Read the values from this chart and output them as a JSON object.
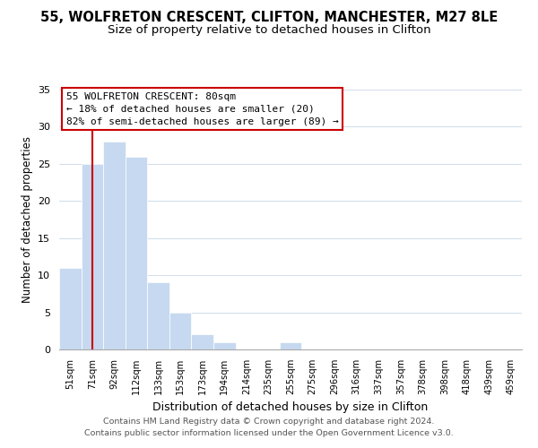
{
  "title_line1": "55, WOLFRETON CRESCENT, CLIFTON, MANCHESTER, M27 8LE",
  "title_line2": "Size of property relative to detached houses in Clifton",
  "xlabel": "Distribution of detached houses by size in Clifton",
  "ylabel": "Number of detached properties",
  "bar_labels": [
    "51sqm",
    "71sqm",
    "92sqm",
    "112sqm",
    "133sqm",
    "153sqm",
    "173sqm",
    "194sqm",
    "214sqm",
    "235sqm",
    "255sqm",
    "275sqm",
    "296sqm",
    "316sqm",
    "337sqm",
    "357sqm",
    "378sqm",
    "398sqm",
    "418sqm",
    "439sqm",
    "459sqm"
  ],
  "bar_values": [
    11,
    25,
    28,
    26,
    9,
    5,
    2,
    1,
    0,
    0,
    1,
    0,
    0,
    0,
    0,
    0,
    0,
    0,
    0,
    0,
    0
  ],
  "bar_color": "#c6d9f0",
  "bar_edge_color": "#ffffff",
  "ylim": [
    0,
    35
  ],
  "yticks": [
    0,
    5,
    10,
    15,
    20,
    25,
    30,
    35
  ],
  "annotation_line1": "55 WOLFRETON CRESCENT: 80sqm",
  "annotation_line2": "← 18% of detached houses are smaller (20)",
  "annotation_line3": "82% of semi-detached houses are larger (89) →",
  "ref_line_x": 1,
  "box_color": "#ffffff",
  "box_edge_color": "#cc0000",
  "ref_line_color": "#cc0000",
  "footer_line1": "Contains HM Land Registry data © Crown copyright and database right 2024.",
  "footer_line2": "Contains public sector information licensed under the Open Government Licence v3.0.",
  "title1_fontsize": 10.5,
  "title2_fontsize": 9.5
}
